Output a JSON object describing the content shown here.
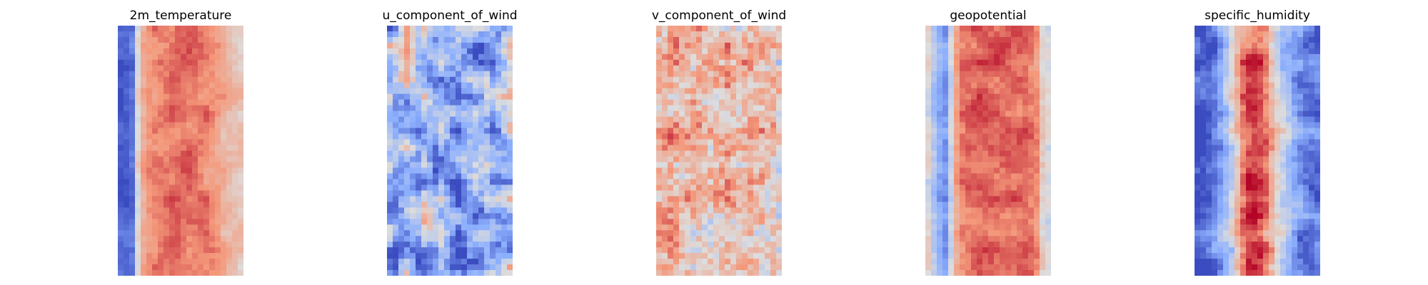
{
  "chart_data": [
    {
      "type": "heatmap",
      "title": "2m_temperature",
      "colormap": "coolwarm",
      "axes_visible": false,
      "grid": false,
      "grid_size": {
        "columns": 22,
        "rows": 44
      },
      "column_profile": [
        0.05,
        0.06,
        0.1,
        0.52,
        0.7,
        0.76,
        0.79,
        0.8,
        0.8,
        0.81,
        0.82,
        0.82,
        0.82,
        0.81,
        0.8,
        0.79,
        0.76,
        0.72,
        0.68,
        0.64,
        0.62,
        0.6
      ],
      "variability": 0.05,
      "hotspot_strength": 0.06
    },
    {
      "type": "heatmap",
      "title": "u_component_of_wind",
      "colormap": "coolwarm",
      "axes_visible": false,
      "grid": false,
      "grid_size": {
        "columns": 22,
        "rows": 44
      },
      "column_profile": [
        0.28,
        0.24,
        0.34,
        0.42,
        0.36,
        0.3,
        0.4,
        0.32,
        0.26,
        0.32,
        0.25,
        0.18,
        0.16,
        0.22,
        0.28,
        0.32,
        0.3,
        0.36,
        0.32,
        0.3,
        0.34,
        0.38
      ],
      "variability": 0.2,
      "hotspot_strength": 0.18
    },
    {
      "type": "heatmap",
      "title": "v_component_of_wind",
      "colormap": "coolwarm",
      "axes_visible": false,
      "grid": false,
      "grid_size": {
        "columns": 22,
        "rows": 44
      },
      "column_profile": [
        0.64,
        0.62,
        0.66,
        0.64,
        0.6,
        0.62,
        0.64,
        0.66,
        0.62,
        0.6,
        0.62,
        0.64,
        0.66,
        0.62,
        0.6,
        0.64,
        0.66,
        0.62,
        0.6,
        0.58,
        0.6,
        0.56
      ],
      "variability": 0.1,
      "hotspot_strength": 0.22
    },
    {
      "type": "heatmap",
      "title": "geopotential",
      "colormap": "coolwarm",
      "axes_visible": false,
      "grid": false,
      "grid_size": {
        "columns": 22,
        "rows": 44
      },
      "column_profile": [
        0.48,
        0.35,
        0.25,
        0.2,
        0.45,
        0.72,
        0.8,
        0.82,
        0.83,
        0.84,
        0.84,
        0.84,
        0.83,
        0.83,
        0.82,
        0.82,
        0.82,
        0.82,
        0.8,
        0.75,
        0.55,
        0.48
      ],
      "variability": 0.05,
      "hotspot_strength": 0.07
    },
    {
      "type": "heatmap",
      "title": "specific_humidity",
      "colormap": "coolwarm",
      "axes_visible": false,
      "grid": false,
      "grid_size": {
        "columns": 22,
        "rows": 44
      },
      "column_profile": [
        0.05,
        0.05,
        0.07,
        0.12,
        0.22,
        0.32,
        0.45,
        0.62,
        0.78,
        0.88,
        0.9,
        0.87,
        0.8,
        0.65,
        0.5,
        0.4,
        0.32,
        0.25,
        0.2,
        0.12,
        0.08,
        0.06
      ],
      "variability": 0.1,
      "hotspot_strength": 0.1
    }
  ]
}
